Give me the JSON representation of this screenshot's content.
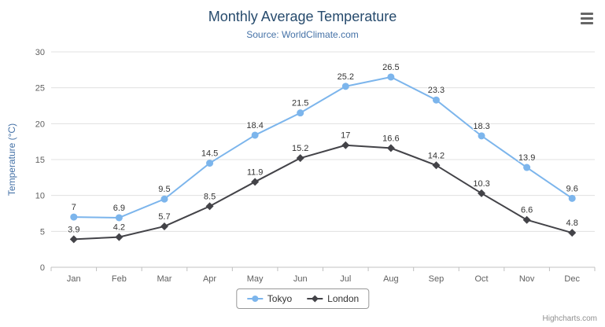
{
  "credits": "Highcharts.com",
  "chart_data": {
    "type": "line",
    "title": "Monthly Average Temperature",
    "subtitle": "Source: WorldClimate.com",
    "xlabel": "",
    "ylabel": "Temperature (°C)",
    "ylim": [
      0,
      30
    ],
    "yticks": [
      0,
      5,
      10,
      15,
      20,
      25,
      30
    ],
    "grid": true,
    "legend_position": "bottom",
    "categories": [
      "Jan",
      "Feb",
      "Mar",
      "Apr",
      "May",
      "Jun",
      "Jul",
      "Aug",
      "Sep",
      "Oct",
      "Nov",
      "Dec"
    ],
    "series": [
      {
        "name": "Tokyo",
        "color": "#7cb5ec",
        "marker": "circle",
        "values": [
          7,
          6.9,
          9.5,
          14.5,
          18.4,
          21.5,
          25.2,
          26.5,
          23.3,
          18.3,
          13.9,
          9.6
        ]
      },
      {
        "name": "London",
        "color": "#434348",
        "marker": "diamond",
        "values": [
          3.9,
          4.2,
          5.7,
          8.5,
          11.9,
          15.2,
          17,
          16.6,
          14.2,
          10.3,
          6.6,
          4.8
        ]
      }
    ],
    "colors": {
      "title": "#274b6d",
      "subtitle": "#4572a7",
      "axis_title": "#4572a7",
      "axis_text": "#606060",
      "axis_line": "#c0c0c0",
      "grid": "#e0e0e0",
      "datalabel": "#333333",
      "legend_border": "#999999",
      "credits": "#909090"
    }
  }
}
